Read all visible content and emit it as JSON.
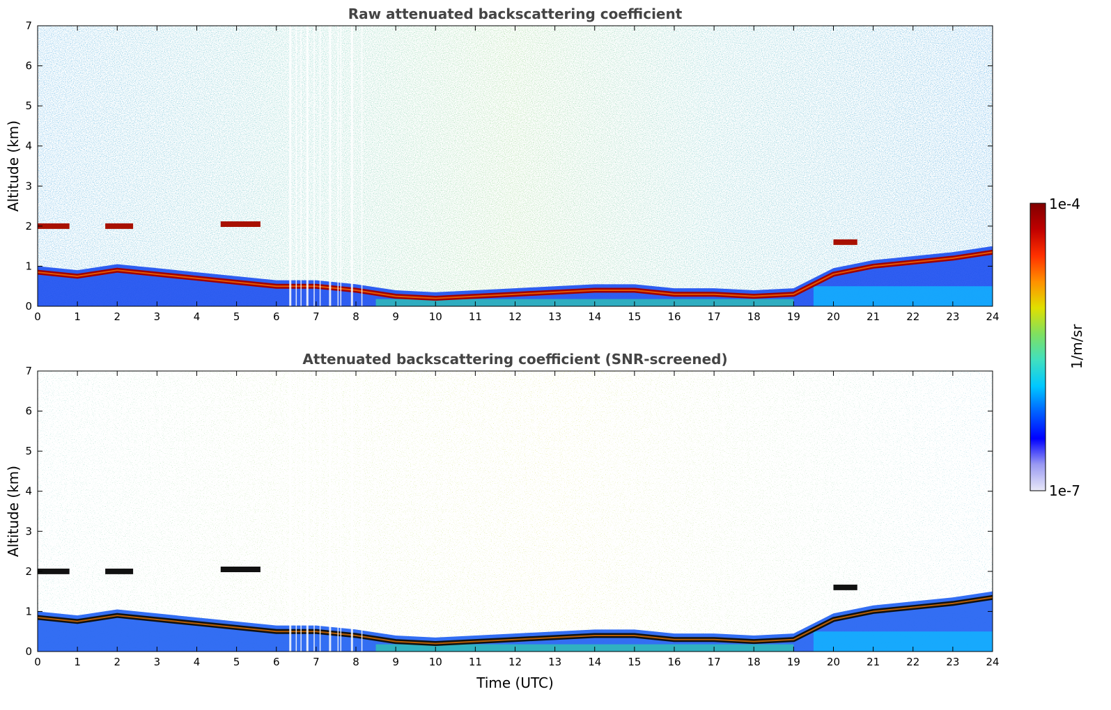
{
  "chart_data": [
    {
      "type": "heatmap",
      "title": "Raw attenuated backscattering coefficient",
      "xlabel": "",
      "ylabel": "Altitude (km)",
      "xlim": [
        0,
        24
      ],
      "ylim": [
        0,
        7
      ],
      "xticks": [
        "0",
        "1",
        "2",
        "3",
        "4",
        "5",
        "6",
        "7",
        "8",
        "9",
        "10",
        "11",
        "12",
        "13",
        "14",
        "15",
        "16",
        "17",
        "18",
        "19",
        "20",
        "21",
        "22",
        "23",
        "24"
      ],
      "yticks": [
        "0",
        "1",
        "2",
        "3",
        "4",
        "5",
        "6",
        "7"
      ],
      "grid": false,
      "layers": [
        {
          "name": "boundary-layer",
          "x": [
            0,
            1,
            2,
            3,
            4,
            5,
            6,
            7,
            8,
            9,
            10,
            11,
            12,
            13,
            14,
            15,
            16,
            17,
            18,
            19,
            20,
            21,
            22,
            23,
            24
          ],
          "y": [
            0.85,
            0.75,
            0.9,
            0.8,
            0.7,
            0.6,
            0.5,
            0.5,
            0.4,
            0.25,
            0.2,
            0.25,
            0.3,
            0.35,
            0.4,
            0.4,
            0.3,
            0.3,
            0.25,
            0.3,
            0.8,
            1.0,
            1.1,
            1.2,
            1.35
          ]
        },
        {
          "name": "cloud-2km",
          "segments": [
            [
              0,
              0.8,
              2.0
            ],
            [
              1.7,
              2.4,
              2.0
            ],
            [
              4.6,
              5.6,
              2.05
            ],
            [
              20.0,
              20.6,
              1.6
            ]
          ]
        }
      ]
    },
    {
      "type": "heatmap",
      "title": "Attenuated backscattering coefficient (SNR-screened)",
      "xlabel": "Time (UTC)",
      "ylabel": "Altitude (km)",
      "xlim": [
        0,
        24
      ],
      "ylim": [
        0,
        7
      ],
      "xticks": [
        "0",
        "1",
        "2",
        "3",
        "4",
        "5",
        "6",
        "7",
        "8",
        "9",
        "10",
        "11",
        "12",
        "13",
        "14",
        "15",
        "16",
        "17",
        "18",
        "19",
        "20",
        "21",
        "22",
        "23",
        "24"
      ],
      "yticks": [
        "0",
        "1",
        "2",
        "3",
        "4",
        "5",
        "6",
        "7"
      ],
      "grid": false
    }
  ],
  "colorbar": {
    "label": "1/m/sr",
    "max_label": "1e-4",
    "min_label": "1e-7",
    "scale": "log",
    "range": [
      1e-07,
      0.0001
    ],
    "colormap": [
      "#e8e8f8",
      "#9a9af2",
      "#0000ff",
      "#0060ff",
      "#00c8ff",
      "#40e0c0",
      "#80e060",
      "#e0e000",
      "#ff9000",
      "#ff3000",
      "#c00000",
      "#800000"
    ]
  }
}
